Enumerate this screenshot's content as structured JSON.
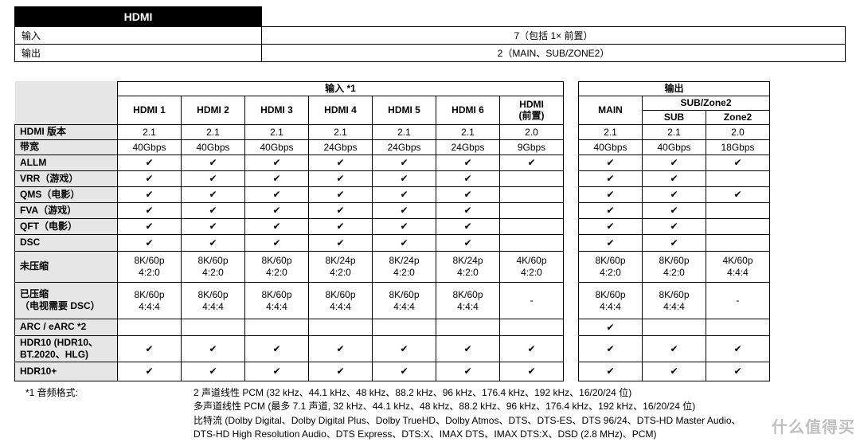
{
  "top": {
    "header": "HDMI",
    "rows": [
      {
        "label": "输入",
        "value": "7（包括 1× 前置）"
      },
      {
        "label": "输出",
        "value": "2（MAIN、SUB/ZONE2）"
      }
    ]
  },
  "spec": {
    "input_header": "输入 *1",
    "output_header": "输出",
    "input_cols": [
      "HDMI 1",
      "HDMI 2",
      "HDMI 3",
      "HDMI 4",
      "HDMI 5",
      "HDMI 6",
      "HDMI\n(前置)"
    ],
    "output_main": "MAIN",
    "output_subzone": "SUB/Zone2",
    "output_sub_cols": [
      "SUB",
      "Zone2"
    ],
    "row_labels": [
      "HDMI 版本",
      "带宽",
      "ALLM",
      "VRR（游戏）",
      "QMS（电影）",
      "FVA（游戏）",
      "QFT（电影）",
      "DSC",
      "未压缩",
      "已压缩\n（电视需要 DSC）",
      "ARC / eARC *2",
      "HDR10 (HDR10、\nBT.2020、HLG)",
      "HDR10+"
    ],
    "input_data": [
      [
        "2.1",
        "2.1",
        "2.1",
        "2.1",
        "2.1",
        "2.1",
        "2.0"
      ],
      [
        "40Gbps",
        "40Gbps",
        "40Gbps",
        "24Gbps",
        "24Gbps",
        "24Gbps",
        "9Gbps"
      ],
      [
        "✔",
        "✔",
        "✔",
        "✔",
        "✔",
        "✔",
        "✔"
      ],
      [
        "✔",
        "✔",
        "✔",
        "✔",
        "✔",
        "✔",
        ""
      ],
      [
        "✔",
        "✔",
        "✔",
        "✔",
        "✔",
        "✔",
        ""
      ],
      [
        "✔",
        "✔",
        "✔",
        "✔",
        "✔",
        "✔",
        ""
      ],
      [
        "✔",
        "✔",
        "✔",
        "✔",
        "✔",
        "✔",
        ""
      ],
      [
        "✔",
        "✔",
        "✔",
        "✔",
        "✔",
        "✔",
        ""
      ],
      [
        "8K/60p\n4:2:0",
        "8K/60p\n4:2:0",
        "8K/60p\n4:2:0",
        "8K/24p\n4:2:0",
        "8K/24p\n4:2:0",
        "8K/24p\n4:2:0",
        "4K/60p\n4:2:0"
      ],
      [
        "8K/60p\n4:4:4",
        "8K/60p\n4:4:4",
        "8K/60p\n4:4:4",
        "8K/60p\n4:4:4",
        "8K/60p\n4:4:4",
        "8K/60p\n4:4:4",
        "-"
      ],
      [
        "",
        "",
        "",
        "",
        "",
        "",
        ""
      ],
      [
        "✔",
        "✔",
        "✔",
        "✔",
        "✔",
        "✔",
        "✔"
      ],
      [
        "✔",
        "✔",
        "✔",
        "✔",
        "✔",
        "✔",
        "✔"
      ]
    ],
    "output_data": [
      [
        "2.1",
        "2.1",
        "2.0"
      ],
      [
        "40Gbps",
        "40Gbps",
        "18Gbps"
      ],
      [
        "✔",
        "✔",
        "✔"
      ],
      [
        "✔",
        "✔",
        ""
      ],
      [
        "✔",
        "✔",
        "✔"
      ],
      [
        "✔",
        "✔",
        ""
      ],
      [
        "✔",
        "✔",
        ""
      ],
      [
        "✔",
        "✔",
        ""
      ],
      [
        "8K/60p\n4:2:0",
        "8K/60p\n4:2:0",
        "4K/60p\n4:4:4"
      ],
      [
        "8K/60p\n4:4:4",
        "8K/60p\n4:4:4",
        "-"
      ],
      [
        "✔",
        "",
        ""
      ],
      [
        "✔",
        "✔",
        "✔"
      ],
      [
        "✔",
        "✔",
        "✔"
      ]
    ]
  },
  "footnotes": {
    "label1": "*1 音频格式:",
    "lines": [
      "2 声道线性 PCM (32 kHz、44.1 kHz、48 kHz、88.2 kHz、96 kHz、176.4 kHz、192 kHz、16/20/24 位)",
      "多声道线性 PCM (最多 7.1 声道, 32 kHz、44.1 kHz、48 kHz、88.2 kHz、96 kHz、176.4 kHz、192 kHz、16/20/24 位)",
      "比特流 (Dolby Digital、Dolby Digital Plus、Dolby TrueHD、Dolby Atmos、DTS、DTS-ES、DTS 96/24、DTS-HD Master Audio、",
      "DTS-HD High Resolution Audio、DTS Express、DTS:X、IMAX DTS、IMAX DTS:X、DSD (2.8 MHz)、PCM)"
    ]
  },
  "watermark": "什么值得买"
}
